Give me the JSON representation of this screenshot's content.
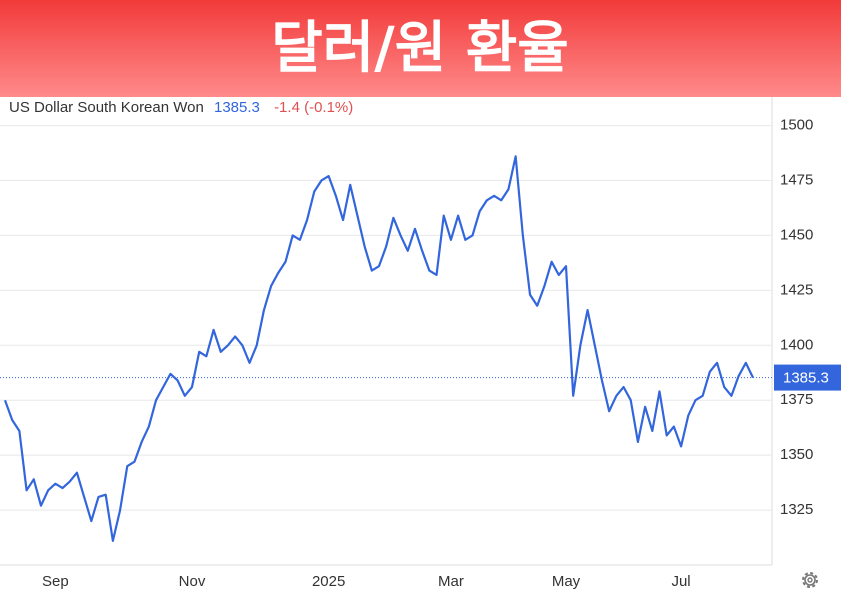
{
  "chart_data": {
    "type": "line",
    "title": "달러/원 환율",
    "subtitle": "US Dollar South Korean Won",
    "last_price": 1385.3,
    "change": "-1.4 (-0.1%)",
    "categories": [
      null,
      null,
      null,
      null,
      null,
      null,
      null,
      "Sep",
      null,
      null,
      null,
      null,
      null,
      null,
      null,
      null,
      null,
      null,
      null,
      null,
      null,
      null,
      null,
      null,
      null,
      null,
      "Nov",
      null,
      null,
      null,
      null,
      null,
      null,
      null,
      null,
      null,
      null,
      null,
      null,
      null,
      null,
      null,
      null,
      null,
      null,
      "2025",
      null,
      null,
      null,
      null,
      null,
      null,
      null,
      null,
      null,
      null,
      null,
      null,
      null,
      null,
      null,
      null,
      "Mar",
      null,
      null,
      null,
      null,
      null,
      null,
      null,
      null,
      null,
      null,
      null,
      null,
      null,
      null,
      null,
      "May",
      null,
      null,
      null,
      null,
      null,
      null,
      null,
      null,
      null,
      null,
      null,
      null,
      null,
      null,
      null,
      "Jul",
      null,
      null,
      null,
      null,
      null,
      null,
      null,
      null,
      null,
      null
    ],
    "series": [
      {
        "name": "US Dollar South Korean Won",
        "color": "#3366dd",
        "values": [
          1375,
          1366,
          1361,
          1334,
          1339,
          1327,
          1334,
          1337,
          1335,
          1338,
          1342,
          1331,
          1320,
          1331,
          1332,
          1311,
          1325,
          1345,
          1347,
          1356,
          1363,
          1375,
          1381,
          1387,
          1384,
          1377,
          1381,
          1397,
          1395,
          1407,
          1397,
          1400,
          1404,
          1400,
          1392,
          1400,
          1416,
          1427,
          1433,
          1438,
          1450,
          1448,
          1457,
          1470,
          1475,
          1477,
          1468,
          1457,
          1473,
          1459,
          1445,
          1434,
          1436,
          1445,
          1458,
          1450,
          1443,
          1453,
          1443,
          1434,
          1432,
          1459,
          1448,
          1459,
          1448,
          1450,
          1461,
          1466,
          1468,
          1466,
          1471,
          1486,
          1450,
          1423,
          1418,
          1427,
          1438,
          1432,
          1436,
          1377,
          1400,
          1416,
          1400,
          1384,
          1370,
          1377,
          1381,
          1375,
          1356,
          1372,
          1361,
          1379,
          1359,
          1363,
          1354,
          1368,
          1375,
          1377,
          1388,
          1392,
          1381,
          1377,
          1386,
          1392,
          1385.3
        ]
      }
    ],
    "ylim": [
      1300,
      1513
    ],
    "yticks": [
      1325,
      1350,
      1375,
      1400,
      1425,
      1450,
      1475,
      1500
    ],
    "grid": true
  }
}
